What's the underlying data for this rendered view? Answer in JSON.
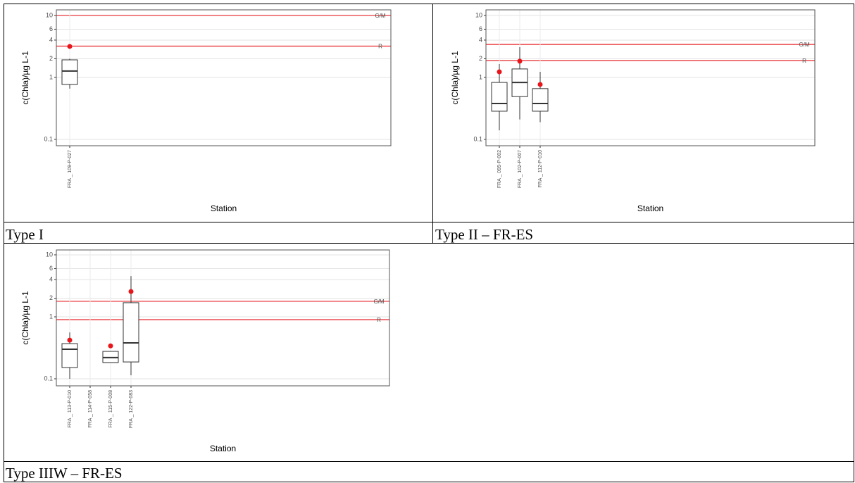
{
  "chart_data": [
    {
      "type": "box",
      "caption": "Type I",
      "xlabel": "Station",
      "ylabel": "c(Chla)/µg L-1",
      "log": true,
      "grid": true,
      "ylim": [
        0.079,
        12.3
      ],
      "yticks": [
        0.1,
        1,
        2,
        4,
        6,
        10
      ],
      "categories": [
        "FRA _ 109-P-027"
      ],
      "lower_whisker": [
        0.66
      ],
      "q1": [
        0.77
      ],
      "median": [
        1.27
      ],
      "q3": [
        1.92
      ],
      "upper_whisker": [
        2.0
      ],
      "markers": [
        3.16
      ],
      "box_color": "#333333",
      "marker_color": "#e8161b",
      "hlines": [
        {
          "label": "G/M",
          "value": 10,
          "color": "#e8262a"
        },
        {
          "label": "R",
          "value": 3.2,
          "color": "#e8262a"
        }
      ]
    },
    {
      "type": "box",
      "caption": "Type II – FR-ES",
      "xlabel": "Station",
      "ylabel": "c(Chla)/µg L-1",
      "log": true,
      "grid": true,
      "ylim": [
        0.079,
        12.3
      ],
      "yticks": [
        0.1,
        1,
        2,
        4,
        6,
        10
      ],
      "categories": [
        "FRA _ 095-P-002",
        "FRA _ 102-P-007",
        "FRA _ 112-P-010"
      ],
      "lower_whisker": [
        0.14,
        0.21,
        0.19
      ],
      "q1": [
        0.285,
        0.49,
        0.285
      ],
      "median": [
        0.38,
        0.83,
        0.38
      ],
      "q3": [
        0.83,
        1.37,
        0.66
      ],
      "upper_whisker": [
        1.64,
        3.08,
        1.23
      ],
      "markers": [
        1.23,
        1.83,
        0.77
      ],
      "box_color": "#333333",
      "marker_color": "#e8161b",
      "hlines": [
        {
          "label": "G/M",
          "value": 3.4,
          "color": "#e8262a"
        },
        {
          "label": "R",
          "value": 1.87,
          "color": "#e8262a"
        }
      ]
    },
    {
      "type": "box",
      "caption": "Type IIIW – FR-ES",
      "xlabel": "Station",
      "ylabel": "c(Chla)/µg L-1",
      "log": true,
      "grid": true,
      "ylim": [
        0.077,
        12.0
      ],
      "yticks": [
        0.1,
        1,
        2,
        4,
        6,
        10
      ],
      "categories": [
        "FRA _ 113-P-010",
        "FRA _ 114-P-058",
        "FRA _ 115-P-008",
        "FRA _ 122-P-083"
      ],
      "lower_whisker": [
        0.1,
        null,
        0.183,
        0.114
      ],
      "q1": [
        0.152,
        null,
        0.183,
        0.187
      ],
      "median": [
        0.3,
        null,
        0.22,
        0.38
      ],
      "q3": [
        0.37,
        null,
        0.277,
        1.69
      ],
      "upper_whisker": [
        0.56,
        null,
        0.277,
        4.55
      ],
      "markers": [
        0.42,
        null,
        0.34,
        2.56
      ],
      "box_color": "#333333",
      "marker_color": "#e8161b",
      "hlines": [
        {
          "label": "G/M",
          "value": 1.78,
          "color": "#e8262a"
        },
        {
          "label": "R",
          "value": 0.9,
          "color": "#e8262a"
        }
      ]
    }
  ]
}
